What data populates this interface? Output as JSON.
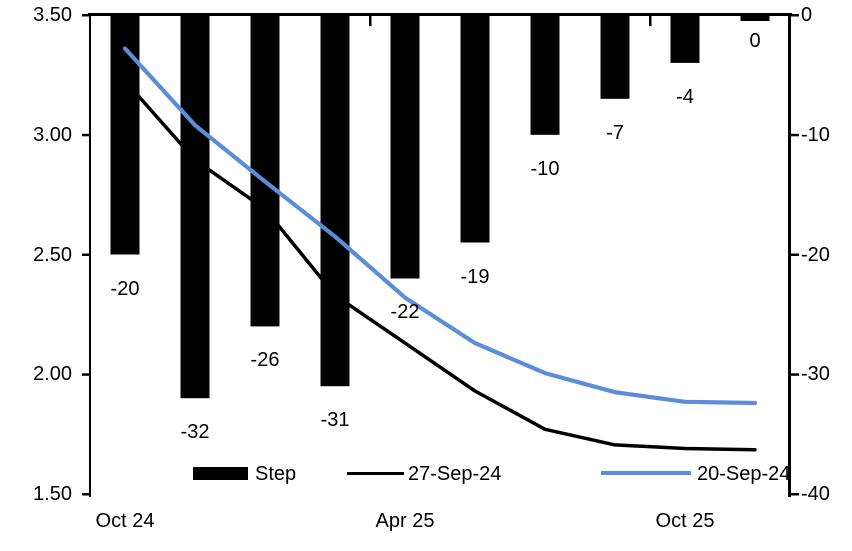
{
  "chart_data": {
    "type": "combo_bar_line",
    "title": "",
    "num_categories": 10,
    "x_axis": {
      "labels": [
        "Oct 24",
        "Apr 25",
        "Oct 25"
      ],
      "label_category_index": [
        0,
        4,
        8
      ],
      "boundary_tick_category_index": [
        4,
        8
      ]
    },
    "left_axis": {
      "ticks": [
        "3.50",
        "3.00",
        "2.50",
        "2.00",
        "1.50"
      ],
      "min": 1.5,
      "max": 3.5
    },
    "right_axis": {
      "ticks": [
        "0",
        "-10",
        "-20",
        "-30",
        "-40"
      ],
      "min": -40,
      "max": 0
    },
    "series": [
      {
        "name": "Step",
        "type": "bar",
        "axis": "right",
        "color": "#000000",
        "values": [
          -20,
          -32,
          -26,
          -31,
          -22,
          -19,
          -10,
          -7,
          -4,
          0
        ],
        "data_labels": [
          "-20",
          "-32",
          "-26",
          "-31",
          "-22",
          "-19",
          "-10",
          "-7",
          "-4",
          "0"
        ]
      },
      {
        "name": "27-Sep-24",
        "type": "line",
        "axis": "right",
        "color": "#000000",
        "values": [
          -5.5,
          -12.1,
          -16.2,
          -23.4,
          -27.4,
          -31.4,
          -34.6,
          -35.9,
          -36.2,
          -36.3
        ]
      },
      {
        "name": "20-Sep-24",
        "type": "line",
        "axis": "right",
        "color": "#5B8DD9",
        "values": [
          -2.8,
          -9.2,
          -13.9,
          -18.5,
          -23.6,
          -27.4,
          -29.9,
          -31.5,
          -32.3,
          -32.4
        ]
      }
    ],
    "legend_position": "bottom-inside",
    "grid": "off"
  }
}
